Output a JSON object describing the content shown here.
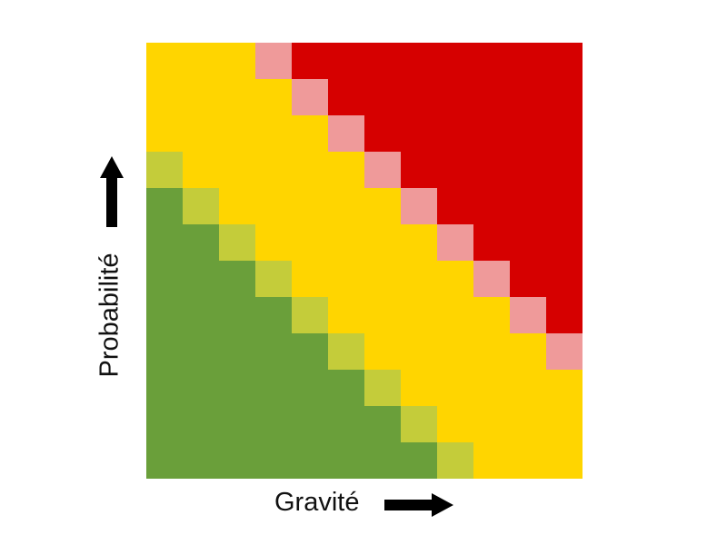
{
  "labels": {
    "y_axis": "Probabilité",
    "x_axis": "Gravité"
  },
  "icons": {
    "y_arrow": "arrow-up-icon",
    "x_arrow": "arrow-right-icon"
  },
  "palette": {
    "G": "#6a9f3a",
    "g": "#c4cc3a",
    "Y": "#ffd500",
    "p": "#ef9a9a",
    "R": "#d60000"
  },
  "risk_matrix": {
    "rows_top_to_bottom": [
      "YYYpRRRRRRRR",
      "YYYYpRRRRRRR",
      "YYYYYpRRRRRR",
      "gYYYYYpRRRRR",
      "GgYYYYYpRRRR",
      "GGgYYYYYpRRR",
      "GGGgYYYYYpRR",
      "GGGGgYYYYYpR",
      "GGGGGgYYYYYp",
      "GGGGGGgYYYYY",
      "GGGGGGGgYYYY",
      "GGGGGGGGgYYY"
    ]
  }
}
